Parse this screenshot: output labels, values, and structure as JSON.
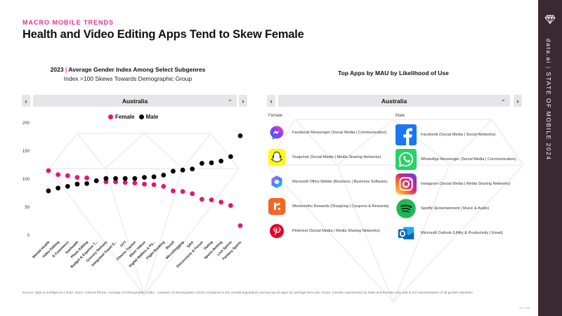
{
  "header": {
    "eyebrow": "MACRO MOBILE TRENDS",
    "title": "Health and Video Editing Apps Tend to Skew Female"
  },
  "left_panel": {
    "title_year": "2023",
    "title_pipe": "|",
    "title_text": "Average Gender Index Among Select Subgenres",
    "subtitle": "Index  >100 Skews Towards Demographic Group",
    "dropdown_value": "Australia",
    "prev_arrow": "‹",
    "next_arrow": "›",
    "caret": "⌄"
  },
  "right_panel": {
    "title": "Top Apps by MAU by Likelihood of Use",
    "dropdown_value": "Australia",
    "prev_arrow": "‹",
    "next_arrow": "›",
    "caret": "⌄",
    "female_label": "Female",
    "male_label": "Male",
    "female_apps": [
      {
        "name": "Facebook Messenger (Social Media | Communication)",
        "icon": "messenger-icon"
      },
      {
        "name": "Snapchat (Social Media | Media Sharing Networks)",
        "icon": "snapchat-icon"
      },
      {
        "name": "Microsoft Office Mobile (Business | Business Software)",
        "icon": "microsoft-office-icon"
      },
      {
        "name": "Woolworths Rewards (Shopping | Coupons & Rewards)",
        "icon": "woolworths-rewards-icon"
      },
      {
        "name": "Pinterest (Social Media | Media Sharing Networks)",
        "icon": "pinterest-icon"
      }
    ],
    "male_apps": [
      {
        "name": "Facebook (Social Media | Social Networks)",
        "icon": "facebook-icon"
      },
      {
        "name": "WhatsApp Messenger (Social Media | Communication)",
        "icon": "whatsapp-icon"
      },
      {
        "name": "Instagram (Social Media | Media Sharing Networks)",
        "icon": "instagram-icon"
      },
      {
        "name": "Spotify (Entertainment | Music & Audio)",
        "icon": "spotify-icon"
      },
      {
        "name": "Microsoft Outlook (Utility & Productivity | Email)",
        "icon": "outlook-icon"
      }
    ]
  },
  "chart_data": {
    "type": "scatter",
    "categories": [
      "Mental Health",
      "Video Editing",
      "E-Commerce",
      "Telehealth",
      "Photo Editing",
      "Budget & Expense T...",
      "Grocery Delivery",
      "Integrated Travel S...",
      "OTT",
      "Fitness Tracker",
      "Short Videos",
      "Digital Wallets & Pa...",
      "Flight Booking",
      "Resell",
      "Microblogging",
      "Q&A",
      "Discussions & Forum",
      "Dating",
      "Sports Betting",
      "Live Sports",
      "Fantasy Sports"
    ],
    "series": [
      {
        "name": "Female",
        "color": "#e8137a",
        "values": [
          115,
          108,
          106,
          103,
          102,
          97,
          95,
          95,
          94,
          93,
          91,
          90,
          87,
          79,
          78,
          74,
          64,
          63,
          59,
          53,
          17
        ]
      },
      {
        "name": "Male",
        "color": "#000000",
        "values": [
          79,
          84,
          87,
          91,
          92,
          97,
          101,
          101,
          101,
          101,
          103,
          104,
          107,
          114,
          116,
          118,
          128,
          129,
          132,
          140,
          177
        ]
      }
    ],
    "ylim": [
      0,
      200
    ],
    "yticks": [
      0,
      50,
      100,
      150,
      200
    ],
    "legend": "top",
    "grid": false
  },
  "footer": {
    "footnote": "Source: data.ai Intelligence | Note: 2023, Android Phone. Average of Demographic  Index : measure of demographic cohort compared to the overall population) among top 20 apps by average MAU per Genre. Gender represented as Male and Female only and is not representative of all gender identities",
    "page": "06 / 100"
  },
  "sidebar": {
    "brand": "data.ai",
    "pipe": "|",
    "report": "STATE OF MOBILE 2024"
  },
  "colors": {
    "accent": "#e0338f",
    "female": "#e8137a",
    "male": "#000000",
    "sidebar": "#3a2833"
  }
}
